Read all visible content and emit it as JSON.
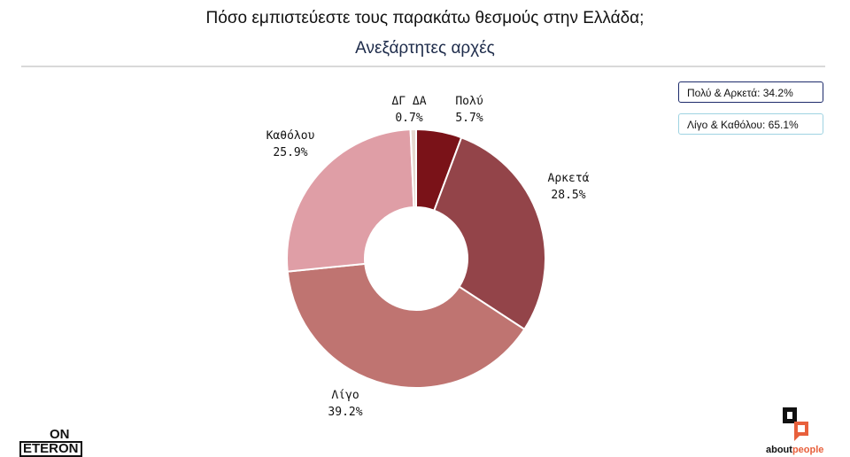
{
  "header": {
    "title": "Πόσο εμπιστεύεστε τους παρακάτω θεσμούς στην Ελλάδα;",
    "subtitle": "Ανεξάρτητες αρχές"
  },
  "summary": {
    "badge_1": "Πολύ & Αρκετά: 34.2%",
    "badge_2": "Λίγο & Καθόλου: 65.1%"
  },
  "chart_data": {
    "type": "pie",
    "donut": true,
    "slices": [
      {
        "label": "Πολύ",
        "value": 5.7,
        "display": "5.7%",
        "color": "#7a1218"
      },
      {
        "label": "Αρκετά",
        "value": 28.5,
        "display": "28.5%",
        "color": "#934449"
      },
      {
        "label": "Λίγο",
        "value": 39.2,
        "display": "39.2%",
        "color": "#bf7471"
      },
      {
        "label": "Καθόλου",
        "value": 25.9,
        "display": "25.9%",
        "color": "#df9ea6"
      },
      {
        "label": "ΔΓ ΔΑ",
        "value": 0.7,
        "display": "0.7%",
        "color": "#e6d9cf"
      }
    ]
  },
  "logos": {
    "left_top": "ON",
    "left_bottom": "ETERON",
    "right_main": "about",
    "right_accent": "people"
  }
}
